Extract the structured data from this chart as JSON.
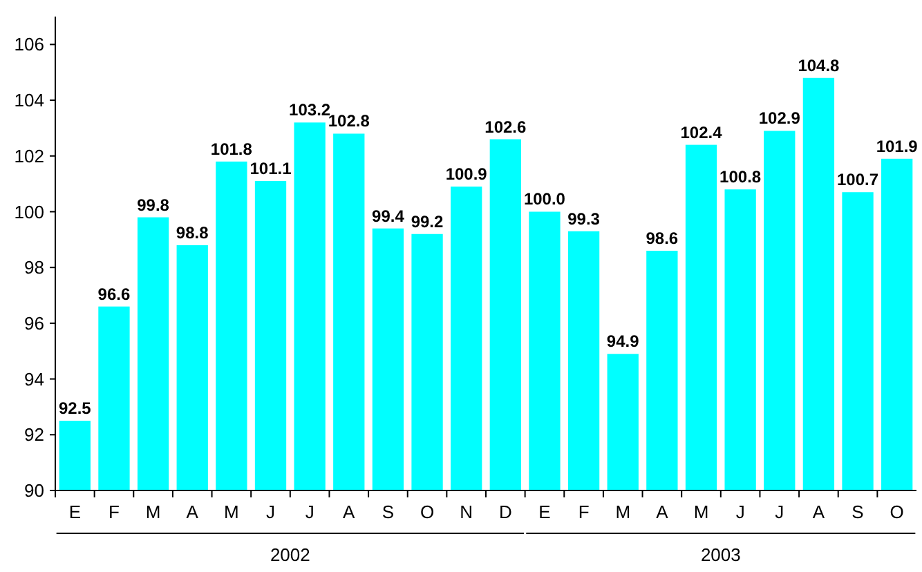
{
  "chart_data": {
    "type": "bar",
    "categories": [
      "E",
      "F",
      "M",
      "A",
      "M",
      "J",
      "J",
      "A",
      "S",
      "O",
      "N",
      "D",
      "E",
      "F",
      "M",
      "A",
      "M",
      "J",
      "J",
      "A",
      "S",
      "O"
    ],
    "values": [
      92.5,
      96.6,
      99.8,
      98.8,
      101.8,
      101.1,
      103.2,
      102.8,
      99.4,
      99.2,
      100.9,
      102.6,
      100.0,
      99.3,
      94.9,
      98.6,
      102.4,
      100.8,
      102.9,
      104.8,
      100.7,
      101.9
    ],
    "value_labels": [
      "92.5",
      "96.6",
      "99.8",
      "98.8",
      "101.8",
      "101.1",
      "103.2",
      "102.8",
      "99.4",
      "99.2",
      "100.9",
      "102.6",
      "100.0",
      "99.3",
      "94.9",
      "98.6",
      "102.4",
      "100.8",
      "102.9",
      "104.8",
      "100.7",
      "101.9"
    ],
    "color": "#00ffff",
    "ylim": [
      90,
      107
    ],
    "yticks": [
      90,
      92,
      94,
      96,
      98,
      100,
      102,
      104,
      106
    ],
    "grid": false,
    "annotations": [
      "2002",
      "2003"
    ]
  }
}
